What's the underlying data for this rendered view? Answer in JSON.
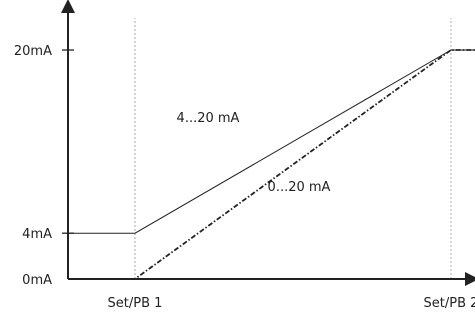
{
  "chart_data": {
    "type": "line",
    "title": "",
    "xlabel": "",
    "ylabel": "",
    "y_ticks": [
      {
        "value": 20,
        "label": "20mA"
      },
      {
        "value": 4,
        "label": "4mA"
      },
      {
        "value": 0,
        "label": "0mA"
      }
    ],
    "x_ticks": [
      {
        "value": 1,
        "label": "Set/PB 1"
      },
      {
        "value": 2,
        "label": "Set/PB 2"
      }
    ],
    "grid": "vertical dotted lines at x ticks",
    "series": [
      {
        "name": "4...20 mA",
        "style": "solid",
        "color": "#222222",
        "points": [
          [
            0,
            4
          ],
          [
            1,
            4
          ],
          [
            2,
            20
          ],
          [
            2.38,
            20
          ]
        ]
      },
      {
        "name": "0...20 mA",
        "style": "dash-dot",
        "color": "#222222",
        "points": [
          [
            0,
            0
          ],
          [
            1,
            0
          ],
          [
            2,
            20
          ],
          [
            2.38,
            20
          ]
        ]
      }
    ],
    "xlim": [
      0,
      2.38
    ],
    "ylim": [
      0,
      20
    ]
  }
}
